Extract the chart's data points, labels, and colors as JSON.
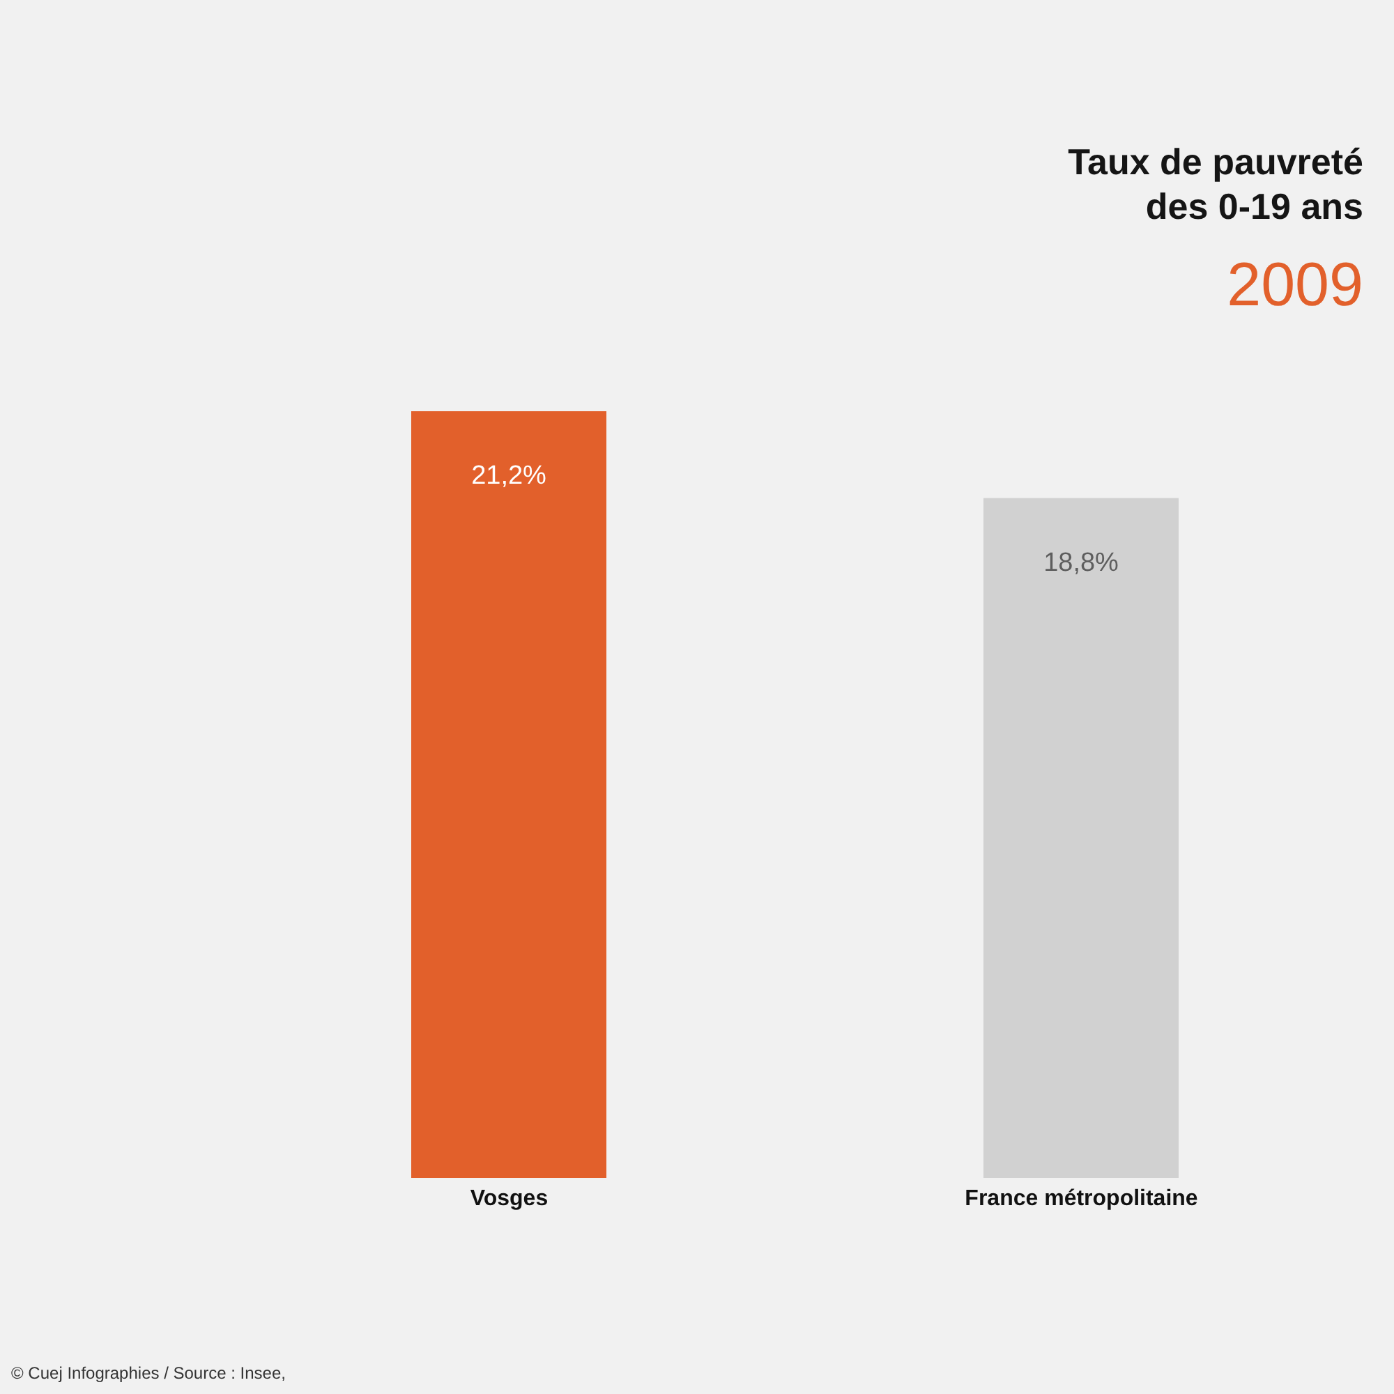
{
  "chart_data": {
    "type": "bar",
    "title": "Taux de pauvreté des 0-19 ans",
    "subtitle": "2009",
    "categories": [
      "Vosges",
      "France métropolitaine"
    ],
    "values": [
      21.2,
      18.8
    ],
    "colors": [
      "#e2602b",
      "#d1d1d1"
    ],
    "value_labels": [
      "21,2%",
      "18,8%"
    ],
    "annotations": [
      "© Cuej Infographies / Source : Insee,"
    ]
  }
}
